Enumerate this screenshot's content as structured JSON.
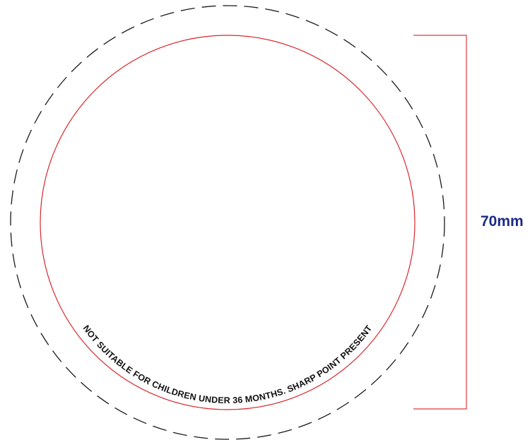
{
  "diagram": {
    "warning_text": "NOT SUITABLE FOR CHILDREN UNDER 36 MONTHS. SHARP POINT PRESENT",
    "dimension_label": "70mm",
    "colors": {
      "trim_line": "#d9262b",
      "bleed_line": "#1a1a1a",
      "dimension_line": "#e0383d",
      "dimension_text": "#1b2b86",
      "warning_text": "#111111"
    }
  }
}
